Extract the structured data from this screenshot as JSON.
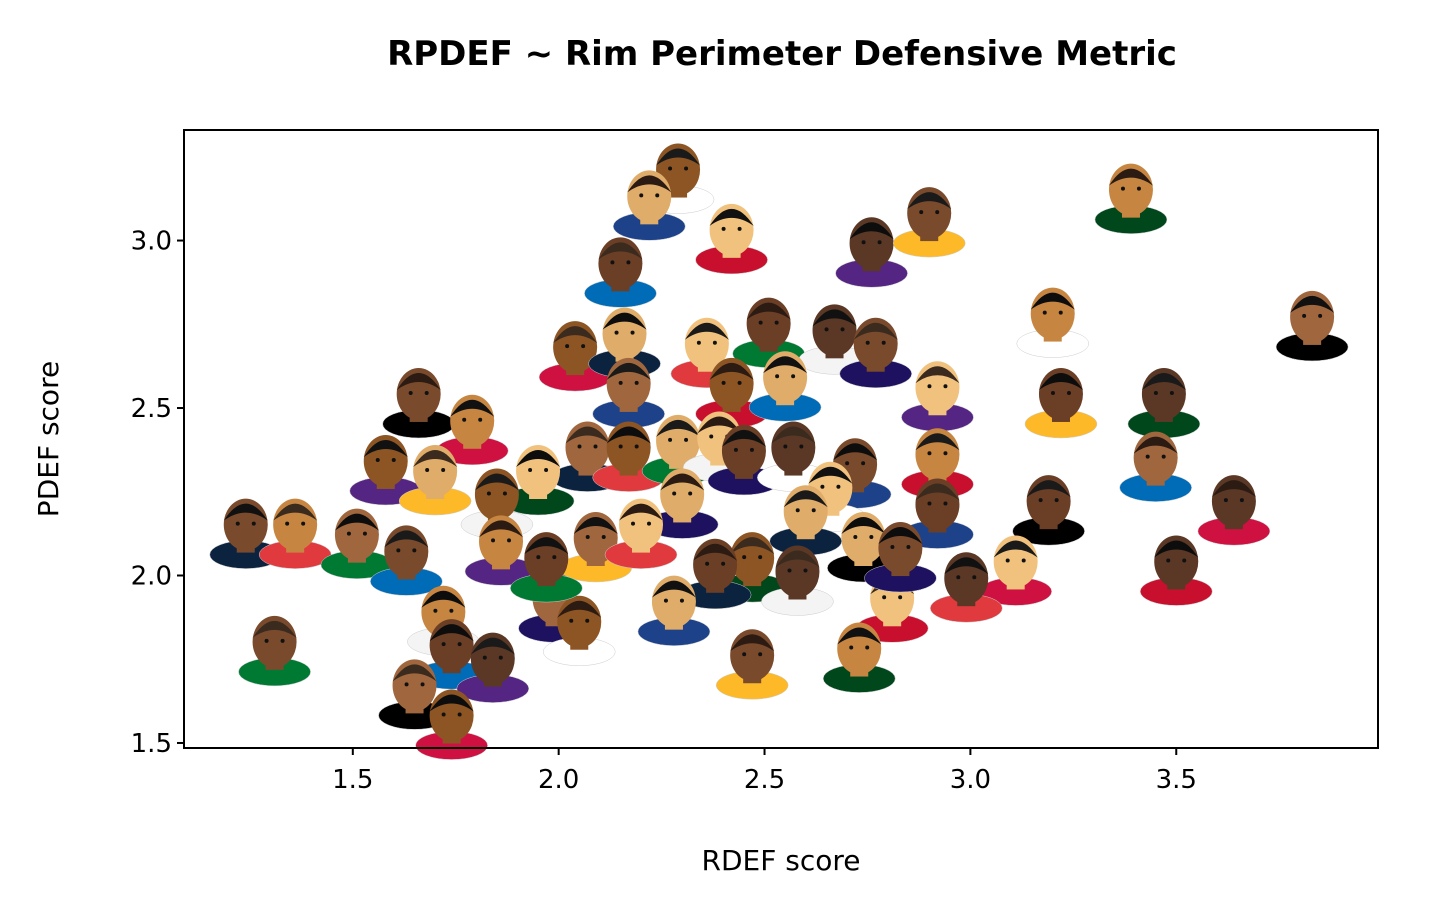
{
  "chart_data": {
    "type": "scatter",
    "title": "RPDEF ~ Rim Perimeter Defensive Metric",
    "xlabel": "RDEF score",
    "ylabel": "PDEF score",
    "xlim": [
      1.09,
      3.99
    ],
    "ylim": [
      1.485,
      3.33
    ],
    "xticks": [
      "1.5",
      "2.0",
      "2.5",
      "3.0",
      "3.5"
    ],
    "yticks": [
      "1.5",
      "2.0",
      "2.5",
      "3.0"
    ],
    "grid": false,
    "marker": "player headshot",
    "points": [
      {
        "x": 2.29,
        "y": 3.2
      },
      {
        "x": 2.22,
        "y": 3.12
      },
      {
        "x": 2.42,
        "y": 3.02
      },
      {
        "x": 2.15,
        "y": 2.92
      },
      {
        "x": 2.76,
        "y": 2.98
      },
      {
        "x": 2.9,
        "y": 3.07
      },
      {
        "x": 3.39,
        "y": 3.14
      },
      {
        "x": 3.83,
        "y": 2.76
      },
      {
        "x": 2.04,
        "y": 2.67
      },
      {
        "x": 2.16,
        "y": 2.71
      },
      {
        "x": 2.36,
        "y": 2.68
      },
      {
        "x": 2.51,
        "y": 2.74
      },
      {
        "x": 2.67,
        "y": 2.72
      },
      {
        "x": 2.77,
        "y": 2.68
      },
      {
        "x": 3.2,
        "y": 2.77
      },
      {
        "x": 2.17,
        "y": 2.56
      },
      {
        "x": 2.42,
        "y": 2.56
      },
      {
        "x": 2.55,
        "y": 2.58
      },
      {
        "x": 2.92,
        "y": 2.55
      },
      {
        "x": 3.22,
        "y": 2.53
      },
      {
        "x": 3.47,
        "y": 2.53
      },
      {
        "x": 1.66,
        "y": 2.53
      },
      {
        "x": 1.79,
        "y": 2.45
      },
      {
        "x": 2.07,
        "y": 2.37
      },
      {
        "x": 2.17,
        "y": 2.37
      },
      {
        "x": 2.29,
        "y": 2.39
      },
      {
        "x": 2.39,
        "y": 2.4
      },
      {
        "x": 2.45,
        "y": 2.36
      },
      {
        "x": 2.57,
        "y": 2.37
      },
      {
        "x": 2.72,
        "y": 2.32
      },
      {
        "x": 2.92,
        "y": 2.35
      },
      {
        "x": 3.45,
        "y": 2.34
      },
      {
        "x": 1.58,
        "y": 2.33
      },
      {
        "x": 1.7,
        "y": 2.3
      },
      {
        "x": 1.95,
        "y": 2.3
      },
      {
        "x": 3.19,
        "y": 2.21
      },
      {
        "x": 3.64,
        "y": 2.21
      },
      {
        "x": 1.24,
        "y": 2.14
      },
      {
        "x": 1.36,
        "y": 2.14
      },
      {
        "x": 1.51,
        "y": 2.11
      },
      {
        "x": 1.85,
        "y": 2.23
      },
      {
        "x": 2.3,
        "y": 2.23
      },
      {
        "x": 2.66,
        "y": 2.25
      },
      {
        "x": 2.92,
        "y": 2.2
      },
      {
        "x": 3.5,
        "y": 2.03
      },
      {
        "x": 1.63,
        "y": 2.06
      },
      {
        "x": 1.86,
        "y": 2.09
      },
      {
        "x": 2.09,
        "y": 2.1
      },
      {
        "x": 2.47,
        "y": 2.04
      },
      {
        "x": 2.74,
        "y": 2.1
      },
      {
        "x": 3.11,
        "y": 2.03
      },
      {
        "x": 2.38,
        "y": 2.02
      },
      {
        "x": 2.99,
        "y": 1.98
      },
      {
        "x": 1.31,
        "y": 1.79
      },
      {
        "x": 1.72,
        "y": 1.88
      },
      {
        "x": 1.99,
        "y": 1.92
      },
      {
        "x": 2.05,
        "y": 1.85
      },
      {
        "x": 2.28,
        "y": 1.91
      },
      {
        "x": 2.81,
        "y": 1.92
      },
      {
        "x": 1.74,
        "y": 1.78
      },
      {
        "x": 1.84,
        "y": 1.74
      },
      {
        "x": 2.47,
        "y": 1.75
      },
      {
        "x": 2.73,
        "y": 1.77
      },
      {
        "x": 1.65,
        "y": 1.66
      },
      {
        "x": 1.74,
        "y": 1.57
      },
      {
        "x": 2.6,
        "y": 2.18
      },
      {
        "x": 2.2,
        "y": 2.14
      },
      {
        "x": 1.97,
        "y": 2.04
      },
      {
        "x": 2.58,
        "y": 2.0
      },
      {
        "x": 2.83,
        "y": 2.07
      }
    ]
  }
}
